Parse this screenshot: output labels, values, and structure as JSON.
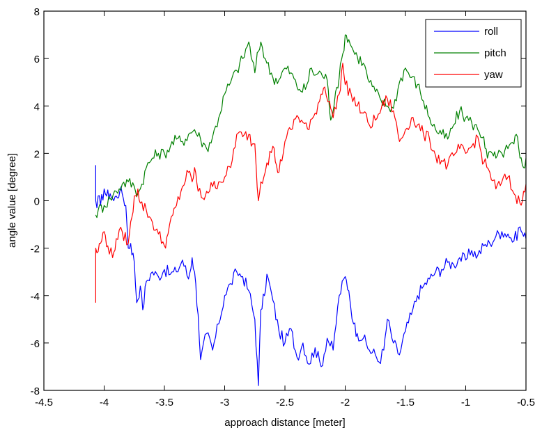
{
  "chart_data": {
    "type": "line",
    "title": "",
    "xlabel": "approach distance [meter]",
    "ylabel": "angle value [degree]",
    "xlim": [
      -4.5,
      -0.5
    ],
    "ylim": [
      -8,
      8
    ],
    "xticks": [
      -4.5,
      -4,
      -3.5,
      -3,
      -2.5,
      -2,
      -1.5,
      -1,
      -0.5
    ],
    "xtick_labels": [
      "-4.5",
      "-4",
      "-3.5",
      "-3",
      "-2.5",
      "-2",
      "-1.5",
      "-1",
      "-0.5"
    ],
    "yticks": [
      -8,
      -6,
      -4,
      -2,
      0,
      2,
      4,
      6,
      8
    ],
    "ytick_labels": [
      "-8",
      "-6",
      "-4",
      "-2",
      "0",
      "2",
      "4",
      "6",
      "8"
    ],
    "grid": false,
    "legend_position": "upper right",
    "series": [
      {
        "name": "roll",
        "color": "#0000ff",
        "x": [
          -4.07,
          -4.07,
          -4.06,
          -4.05,
          -4.03,
          -4.0,
          -3.98,
          -3.95,
          -3.92,
          -3.9,
          -3.87,
          -3.85,
          -3.82,
          -3.8,
          -3.78,
          -3.75,
          -3.73,
          -3.7,
          -3.68,
          -3.65,
          -3.6,
          -3.55,
          -3.5,
          -3.45,
          -3.4,
          -3.35,
          -3.3,
          -3.27,
          -3.25,
          -3.22,
          -3.2,
          -3.15,
          -3.1,
          -3.05,
          -3.0,
          -2.95,
          -2.9,
          -2.85,
          -2.8,
          -2.75,
          -2.72,
          -2.7,
          -2.67,
          -2.65,
          -2.6,
          -2.55,
          -2.5,
          -2.45,
          -2.4,
          -2.35,
          -2.3,
          -2.25,
          -2.2,
          -2.15,
          -2.1,
          -2.05,
          -2.0,
          -1.97,
          -1.93,
          -1.9,
          -1.85,
          -1.8,
          -1.75,
          -1.72,
          -1.68,
          -1.65,
          -1.6,
          -1.55,
          -1.5,
          -1.45,
          -1.4,
          -1.35,
          -1.3,
          -1.25,
          -1.2,
          -1.15,
          -1.1,
          -1.05,
          -1.0,
          -0.95,
          -0.9,
          -0.85,
          -0.8,
          -0.75,
          -0.7,
          -0.65,
          -0.6,
          -0.55,
          -0.52,
          -0.5
        ],
        "y": [
          1.5,
          0.0,
          -0.3,
          0.2,
          -0.2,
          0.5,
          0.2,
          0.3,
          0.0,
          0.2,
          0.4,
          0.3,
          -0.2,
          -2.0,
          -1.8,
          -2.6,
          -4.3,
          -3.6,
          -4.6,
          -3.4,
          -3.0,
          -3.2,
          -2.9,
          -3.1,
          -3.0,
          -2.5,
          -3.3,
          -2.4,
          -3.0,
          -4.8,
          -6.7,
          -5.6,
          -6.3,
          -5.2,
          -4.0,
          -3.5,
          -3.0,
          -3.2,
          -3.8,
          -5.0,
          -7.8,
          -4.6,
          -4.0,
          -3.1,
          -4.2,
          -5.5,
          -6.0,
          -5.4,
          -6.6,
          -6.0,
          -6.9,
          -6.2,
          -7.0,
          -5.8,
          -6.3,
          -4.0,
          -3.2,
          -3.8,
          -5.2,
          -5.6,
          -5.8,
          -6.3,
          -6.5,
          -6.8,
          -6.3,
          -5.0,
          -6.0,
          -6.5,
          -5.5,
          -4.8,
          -4.0,
          -3.6,
          -3.3,
          -3.0,
          -2.9,
          -2.6,
          -2.7,
          -2.4,
          -2.5,
          -2.1,
          -2.3,
          -1.9,
          -1.8,
          -1.5,
          -1.3,
          -1.4,
          -1.7,
          -1.1,
          -1.5,
          -1.6
        ]
      },
      {
        "name": "pitch",
        "color": "#008000",
        "x": [
          -4.07,
          -4.05,
          -4.0,
          -3.95,
          -3.9,
          -3.85,
          -3.8,
          -3.75,
          -3.72,
          -3.7,
          -3.65,
          -3.6,
          -3.55,
          -3.5,
          -3.45,
          -3.4,
          -3.35,
          -3.3,
          -3.25,
          -3.2,
          -3.15,
          -3.1,
          -3.05,
          -3.0,
          -2.95,
          -2.9,
          -2.85,
          -2.8,
          -2.77,
          -2.75,
          -2.72,
          -2.7,
          -2.65,
          -2.6,
          -2.55,
          -2.5,
          -2.45,
          -2.4,
          -2.38,
          -2.33,
          -2.28,
          -2.25,
          -2.2,
          -2.15,
          -2.12,
          -2.08,
          -2.05,
          -2.02,
          -2.0,
          -1.97,
          -1.93,
          -1.9,
          -1.85,
          -1.8,
          -1.75,
          -1.7,
          -1.65,
          -1.6,
          -1.55,
          -1.5,
          -1.45,
          -1.4,
          -1.35,
          -1.3,
          -1.25,
          -1.2,
          -1.15,
          -1.1,
          -1.05,
          -1.0,
          -0.95,
          -0.9,
          -0.85,
          -0.82,
          -0.78,
          -0.75,
          -0.7,
          -0.65,
          -0.6,
          -0.58,
          -0.55,
          -0.52,
          -0.5
        ],
        "y": [
          -0.6,
          -0.4,
          -0.2,
          0.1,
          0.4,
          0.7,
          0.8,
          0.6,
          0.3,
          0.5,
          1.4,
          1.8,
          2.0,
          2.0,
          2.3,
          2.6,
          2.5,
          2.8,
          3.0,
          2.6,
          2.2,
          2.7,
          3.5,
          4.5,
          5.0,
          5.5,
          6.0,
          6.7,
          5.9,
          5.4,
          6.3,
          6.7,
          5.8,
          5.2,
          5.1,
          5.6,
          5.4,
          4.8,
          4.7,
          4.7,
          5.6,
          5.3,
          5.4,
          5.1,
          3.4,
          4.6,
          5.2,
          6.2,
          7.0,
          6.8,
          6.3,
          6.1,
          5.8,
          5.0,
          4.6,
          4.2,
          4.0,
          3.9,
          5.0,
          5.6,
          5.2,
          4.9,
          4.2,
          3.5,
          3.0,
          2.8,
          2.6,
          3.2,
          3.8,
          3.5,
          3.3,
          3.0,
          2.7,
          1.8,
          2.0,
          1.8,
          2.0,
          2.2,
          2.4,
          2.8,
          1.8,
          1.4,
          1.8
        ]
      },
      {
        "name": "yaw",
        "color": "#ff0000",
        "x": [
          -4.07,
          -4.07,
          -4.06,
          -4.03,
          -4.0,
          -3.97,
          -3.93,
          -3.9,
          -3.85,
          -3.8,
          -3.77,
          -3.75,
          -3.72,
          -3.7,
          -3.65,
          -3.6,
          -3.55,
          -3.5,
          -3.47,
          -3.43,
          -3.4,
          -3.35,
          -3.3,
          -3.27,
          -3.25,
          -3.22,
          -3.18,
          -3.15,
          -3.1,
          -3.05,
          -3.0,
          -2.95,
          -2.9,
          -2.85,
          -2.8,
          -2.77,
          -2.75,
          -2.72,
          -2.7,
          -2.65,
          -2.6,
          -2.57,
          -2.55,
          -2.5,
          -2.45,
          -2.4,
          -2.35,
          -2.3,
          -2.25,
          -2.2,
          -2.17,
          -2.13,
          -2.1,
          -2.05,
          -2.02,
          -2.0,
          -1.95,
          -1.9,
          -1.85,
          -1.8,
          -1.75,
          -1.7,
          -1.65,
          -1.6,
          -1.55,
          -1.5,
          -1.45,
          -1.4,
          -1.35,
          -1.3,
          -1.25,
          -1.2,
          -1.15,
          -1.1,
          -1.05,
          -1.0,
          -0.95,
          -0.9,
          -0.88,
          -0.85,
          -0.8,
          -0.75,
          -0.7,
          -0.65,
          -0.6,
          -0.55,
          -0.52,
          -0.5
        ],
        "y": [
          -4.3,
          -2.0,
          -2.2,
          -1.8,
          -1.3,
          -1.9,
          -2.4,
          -1.6,
          -1.3,
          -1.8,
          -0.7,
          0.2,
          0.5,
          -0.1,
          -0.4,
          -0.9,
          -1.4,
          -1.9,
          -1.4,
          -0.6,
          -0.2,
          0.6,
          1.2,
          0.8,
          1.4,
          0.4,
          0.1,
          0.4,
          0.6,
          0.8,
          1.0,
          1.4,
          2.8,
          2.7,
          2.8,
          2.4,
          2.4,
          0.0,
          0.8,
          1.6,
          2.3,
          1.5,
          1.2,
          2.5,
          3.0,
          3.6,
          3.3,
          3.0,
          3.7,
          4.5,
          4.8,
          4.2,
          3.5,
          4.5,
          5.8,
          4.9,
          4.5,
          4.0,
          3.7,
          3.2,
          3.4,
          3.9,
          4.3,
          3.8,
          2.5,
          3.0,
          3.5,
          3.2,
          2.8,
          2.6,
          1.9,
          1.7,
          1.5,
          1.9,
          2.2,
          2.0,
          2.3,
          2.7,
          2.2,
          1.6,
          1.2,
          0.5,
          0.8,
          1.0,
          0.3,
          -0.1,
          0.4,
          0.7
        ]
      }
    ]
  }
}
